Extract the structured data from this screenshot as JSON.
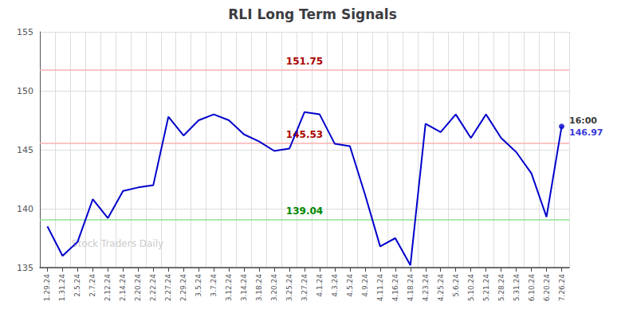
{
  "chart_data": {
    "type": "line",
    "title": "RLI Long Term Signals",
    "watermark": "Stock Traders Daily",
    "categories": [
      "1.29.24",
      "1.31.24",
      "2.5.24",
      "2.7.24",
      "2.12.24",
      "2.14.24",
      "2.20.24",
      "2.22.24",
      "2.27.24",
      "2.29.24",
      "3.5.24",
      "3.7.24",
      "3.12.24",
      "3.14.24",
      "3.18.24",
      "3.20.24",
      "3.25.24",
      "3.27.24",
      "4.1.24",
      "4.3.24",
      "4.5.24",
      "4.9.24",
      "4.11.24",
      "4.16.24",
      "4.18.24",
      "4.23.24",
      "4.25.24",
      "5.6.24",
      "5.10.24",
      "5.21.24",
      "5.28.24",
      "5.31.24",
      "6.10.24",
      "6.20.24",
      "7.26.24"
    ],
    "values": [
      138.5,
      136.0,
      137.2,
      140.8,
      139.2,
      141.5,
      141.8,
      142.0,
      147.8,
      146.2,
      147.5,
      148.0,
      147.5,
      146.3,
      145.7,
      144.9,
      145.1,
      148.2,
      148.0,
      145.5,
      145.3,
      141.2,
      136.8,
      137.5,
      135.2,
      147.2,
      146.5,
      148.0,
      146.0,
      148.0,
      146.0,
      144.8,
      143.0,
      139.3,
      146.97
    ],
    "color": "#0000cc",
    "hlines": [
      {
        "value": 151.75,
        "label": "151.75",
        "color": "#ffb0b0",
        "text_color": "#aa0000"
      },
      {
        "value": 145.53,
        "label": "145.53",
        "color": "#ffb0b0",
        "text_color": "#aa0000"
      },
      {
        "value": 139.04,
        "label": "139.04",
        "color": "#90e090",
        "text_color": "#008800"
      }
    ],
    "annotations": [
      {
        "text": "16:00",
        "category": "7.26.24",
        "value": 146.97,
        "color": "#000000"
      },
      {
        "text": "146.97",
        "category": "7.26.24",
        "value": 146.97,
        "color": "#0000cc"
      }
    ],
    "ylim": [
      135,
      155
    ],
    "yticks": [
      135,
      140,
      145,
      150,
      155
    ],
    "grid": true
  }
}
